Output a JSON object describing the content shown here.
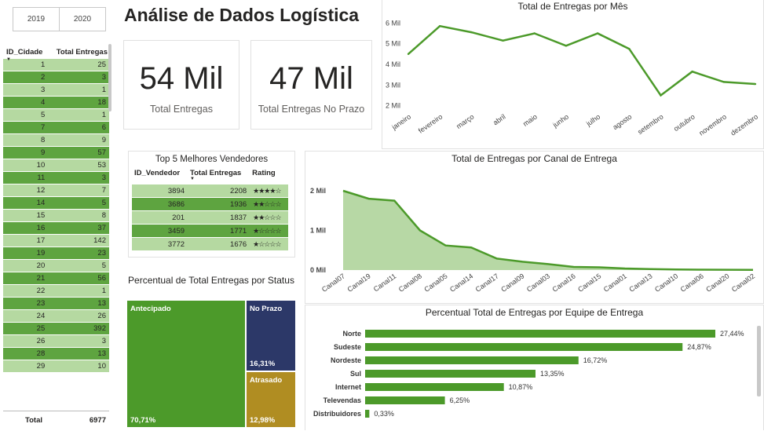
{
  "year_buttons": [
    "2019",
    "2020"
  ],
  "title": "Análise de Dados Logística",
  "city_table": {
    "headers": [
      "ID_Cidade",
      "Total Entregas"
    ],
    "rows": [
      [
        "1",
        "25"
      ],
      [
        "2",
        "3"
      ],
      [
        "3",
        "1"
      ],
      [
        "4",
        "18"
      ],
      [
        "5",
        "1"
      ],
      [
        "7",
        "6"
      ],
      [
        "8",
        "9"
      ],
      [
        "9",
        "57"
      ],
      [
        "10",
        "53"
      ],
      [
        "11",
        "3"
      ],
      [
        "12",
        "7"
      ],
      [
        "14",
        "5"
      ],
      [
        "15",
        "8"
      ],
      [
        "16",
        "37"
      ],
      [
        "17",
        "142"
      ],
      [
        "19",
        "23"
      ],
      [
        "20",
        "5"
      ],
      [
        "21",
        "56"
      ],
      [
        "22",
        "1"
      ],
      [
        "23",
        "13"
      ],
      [
        "24",
        "26"
      ],
      [
        "25",
        "392"
      ],
      [
        "26",
        "3"
      ],
      [
        "28",
        "13"
      ],
      [
        "29",
        "10"
      ]
    ],
    "total_label": "Total",
    "total_value": "6977"
  },
  "kpis": [
    {
      "value": "54 Mil",
      "label": "Total Entregas"
    },
    {
      "value": "47 Mil",
      "label": "Total Entregas No Prazo"
    }
  ],
  "top5": {
    "title": "Top 5 Melhores Vendedores",
    "headers": [
      "ID_Vendedor",
      "Total Entregas",
      "Rating"
    ],
    "rows": [
      {
        "id": "3894",
        "total": "2208",
        "rating": 4
      },
      {
        "id": "3686",
        "total": "1936",
        "rating": 2
      },
      {
        "id": "201",
        "total": "1837",
        "rating": 2
      },
      {
        "id": "3459",
        "total": "1771",
        "rating": 1
      },
      {
        "id": "3772",
        "total": "1676",
        "rating": 1
      }
    ]
  },
  "status_treemap": {
    "title": "Percentual de Total Entregas por Status",
    "items": [
      {
        "name": "Antecipado",
        "pct": "70,71%",
        "value": 70.71,
        "color": "#4c9a2a"
      },
      {
        "name": "No Prazo",
        "pct": "16,31%",
        "value": 16.31,
        "color": "#2c3868"
      },
      {
        "name": "Atrasado",
        "pct": "12,98%",
        "value": 12.98,
        "color": "#b08d22"
      }
    ]
  },
  "colors": {
    "green": "#4c9a2a",
    "green_light": "#b7d8a5",
    "row_dark": "#5ea440",
    "row_light": "#b5d9a1"
  },
  "chart_data": [
    {
      "type": "line",
      "title": "Total de Entregas por Mês",
      "categories": [
        "janeiro",
        "fevereiro",
        "março",
        "abril",
        "maio",
        "junho",
        "julho",
        "agosto",
        "setembro",
        "outubro",
        "novembro",
        "dezembro"
      ],
      "values": [
        4500,
        5850,
        5550,
        5150,
        5500,
        4900,
        5500,
        4750,
        2500,
        3650,
        3150,
        3050
      ],
      "ytick_labels": [
        "2 Mil",
        "3 Mil",
        "4 Mil",
        "5 Mil",
        "6 Mil"
      ],
      "yticks": [
        2000,
        3000,
        4000,
        5000,
        6000
      ],
      "ylim": [
        1800,
        6200
      ],
      "grid": false
    },
    {
      "type": "area",
      "title": "Total de Entregas por Canal de Entrega",
      "categories": [
        "Canal07",
        "Canal19",
        "Canal11",
        "Canal08",
        "Canal05",
        "Canal14",
        "Canal17",
        "Canal09",
        "Canal03",
        "Canal16",
        "Canal15",
        "Canal01",
        "Canal13",
        "Canal10",
        "Canal06",
        "Canal20",
        "Canal02"
      ],
      "values": [
        2000,
        1800,
        1750,
        1000,
        620,
        570,
        290,
        210,
        150,
        80,
        70,
        40,
        25,
        15,
        10,
        8,
        5
      ],
      "ytick_labels": [
        "0 Mil",
        "1 Mil",
        "2 Mil"
      ],
      "yticks": [
        0,
        1000,
        2000
      ],
      "ylim": [
        0,
        2000
      ],
      "grid": false
    },
    {
      "type": "bar",
      "orientation": "horizontal",
      "title": "Percentual Total de Entregas por Equipe de Entrega",
      "categories": [
        "Norte",
        "Sudeste",
        "Nordeste",
        "Sul",
        "Internet",
        "Televendas",
        "Distribuidores"
      ],
      "values": [
        27.44,
        24.87,
        16.72,
        13.35,
        10.87,
        6.25,
        0.33
      ],
      "data_labels": [
        "27,44%",
        "24,87%",
        "16,72%",
        "13,35%",
        "10,87%",
        "6,25%",
        "0,33%"
      ],
      "xlim": [
        0,
        27.44
      ]
    }
  ]
}
